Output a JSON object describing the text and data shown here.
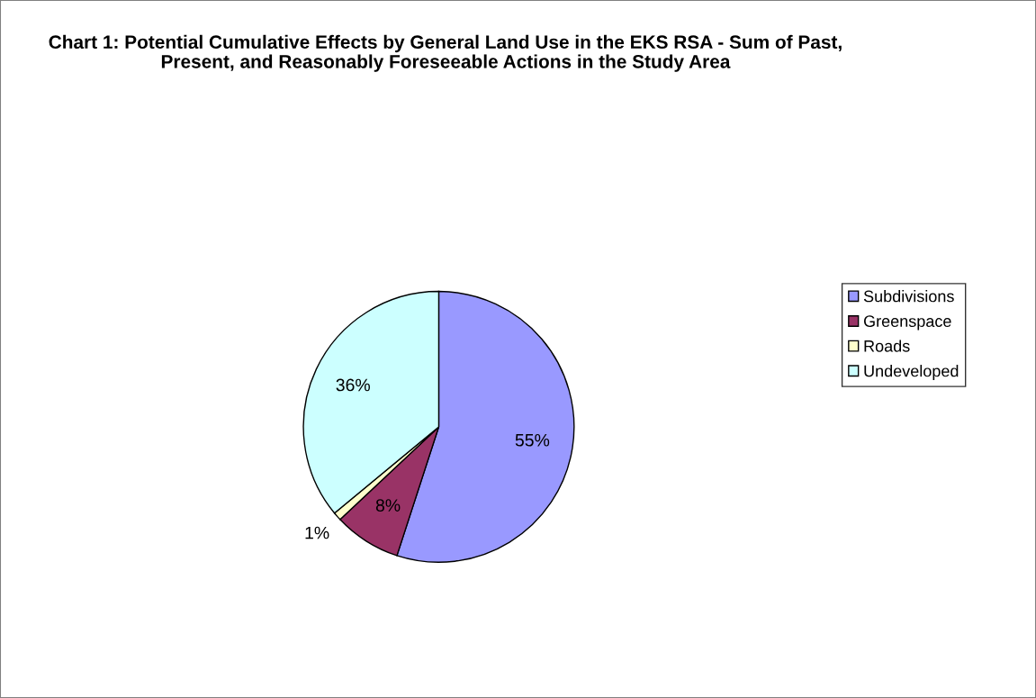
{
  "chart_data": {
    "type": "pie",
    "title": "Chart 1: Potential Cumulative Effects by General Land Use in the EKS RSA - Sum of Past, Present, and Reasonably Foreseeable Actions in the Study Area",
    "categories": [
      "Subdivisions",
      "Greenspace",
      "Roads",
      "Undeveloped"
    ],
    "values": [
      55,
      8,
      1,
      36
    ],
    "colors": [
      "#9999ff",
      "#993366",
      "#ffffcc",
      "#ccffff"
    ],
    "value_labels": [
      "55%",
      "8%",
      "1%",
      "36%"
    ],
    "legend": "right"
  }
}
